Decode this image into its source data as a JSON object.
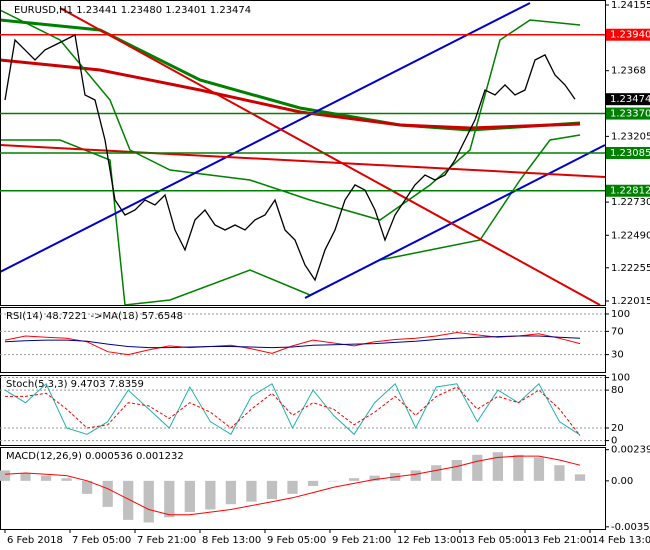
{
  "chart_data": [
    {
      "type": "line",
      "title": "EURUSD,H1  1.23441 1.23480 1.23401 1.23474",
      "xlim": [
        -0.5,
        60
      ],
      "ylim": [
        1.21986,
        1.24191
      ],
      "xticks": [
        {
          "value": 0,
          "label": "6 Feb 2018"
        },
        {
          "value": 6.5,
          "label": "7 Feb 05:00"
        },
        {
          "value": 13,
          "label": "7 Feb 21:00"
        },
        {
          "value": 19.5,
          "label": "8 Feb 13:00"
        },
        {
          "value": 26,
          "label": "9 Feb 05:00"
        },
        {
          "value": 32.5,
          "label": "9 Feb 21:00"
        },
        {
          "value": 39,
          "label": "12 Feb 13:00"
        },
        {
          "value": 45.5,
          "label": "13 Feb 05:00"
        },
        {
          "value": 52,
          "label": "13 Feb 21:00"
        },
        {
          "value": 58.5,
          "label": "14 Feb 13:00"
        }
      ],
      "yticks": [
        1.24155,
        1.2368,
        1.23205,
        {
          "value": 1.2273,
          "label": "1.22730"
        },
        {
          "value": 1.2249,
          "label": "1.22490"
        },
        1.22255,
        1.22015
      ],
      "levels": [
        {
          "value": 1.2394,
          "label": "1.23940",
          "color": "#ff0000"
        },
        {
          "value": 1.2337,
          "label": "1.23370",
          "color": "#008000"
        },
        {
          "value": 1.23085,
          "label": "1.23085",
          "color": "#008000"
        },
        {
          "value": 1.22812,
          "label": "1.22812",
          "color": "#008000"
        }
      ],
      "current_price": 1.23474,
      "series": [
        {
          "color": "#000000",
          "values": [
            1.23468,
            1.23902,
            1.2383,
            1.23757,
            1.2383,
            1.23866,
            1.23902,
            1.23938,
            1.23504,
            1.23468,
            1.23179,
            1.22745,
            1.22637,
            1.22673,
            1.22745,
            1.22709,
            1.22781,
            1.22528,
            1.22384,
            1.22601,
            1.22673,
            1.22564,
            1.22528,
            1.22564,
            1.22528,
            1.22601,
            1.22637,
            1.22745,
            1.22528,
            1.22456,
            1.22275,
            1.22167,
            1.22384,
            1.22528,
            1.22745,
            1.22854,
            1.22817,
            1.22673,
            1.22456,
            1.22637,
            1.22745,
            1.22854,
            1.22926,
            1.2289,
            1.22926,
            1.23034,
            1.23179,
            1.23324,
            1.2354,
            1.23504,
            1.23577,
            1.23504,
            1.2354,
            1.23757,
            1.23794,
            1.23649,
            1.23577,
            1.23474
          ]
        }
      ]
    },
    {
      "type": "line",
      "title": "RSI(14) 48.7221  ->MA(18) 57.6548",
      "ylim": [
        0,
        112
      ],
      "yticks": [
        100,
        70,
        30
      ],
      "grid": true,
      "series": [
        {
          "color": "#ff0000",
          "values": [
            55,
            62,
            60,
            58,
            52,
            35,
            30,
            38,
            45,
            42,
            44,
            46,
            40,
            32,
            45,
            55,
            50,
            45,
            52,
            56,
            58,
            62,
            68,
            64,
            60,
            62,
            66,
            58,
            49
          ]
        },
        {
          "color": "#00008b",
          "values": [
            52,
            54,
            55,
            55,
            53,
            48,
            44,
            42,
            42,
            43,
            44,
            44,
            43,
            42,
            43,
            46,
            47,
            48,
            49,
            51,
            53,
            56,
            58,
            60,
            61,
            62,
            62,
            60,
            58
          ]
        }
      ]
    },
    {
      "type": "line",
      "title": "Stoch(5,3,3) 9.4703 7.8359",
      "ylim": [
        -7,
        104
      ],
      "yticks": [
        100,
        80,
        20,
        0
      ],
      "grid": true,
      "series": [
        {
          "color": "#20b2aa",
          "values": [
            80,
            60,
            90,
            20,
            10,
            30,
            80,
            50,
            20,
            85,
            30,
            10,
            70,
            90,
            20,
            80,
            40,
            10,
            60,
            90,
            20,
            85,
            90,
            30,
            80,
            60,
            90,
            30,
            9
          ]
        },
        {
          "color": "#ff0000",
          "dashed": true,
          "values": [
            70,
            70,
            75,
            50,
            20,
            25,
            60,
            55,
            35,
            60,
            45,
            20,
            50,
            75,
            40,
            60,
            50,
            25,
            45,
            70,
            40,
            70,
            85,
            50,
            70,
            60,
            80,
            50,
            8
          ]
        }
      ]
    },
    {
      "type": "line",
      "title": "MACD(12,26,9) 0.000536 0.001232",
      "ylim": [
        -0.0037,
        0.0026
      ],
      "yticks": [
        0.002396,
        {
          "value": 0,
          "label": "0.00"
        },
        -0.003533
      ],
      "series": [
        {
          "color": "#c0c0c0",
          "style": "histogram",
          "values": [
            0.0008,
            0.0006,
            0.0004,
            0.0002,
            -0.001,
            -0.002,
            -0.003,
            -0.0032,
            -0.0028,
            -0.0024,
            -0.0022,
            -0.0018,
            -0.0016,
            -0.0014,
            -0.001,
            -0.0004,
            0,
            0.0002,
            0.0004,
            0.0006,
            0.0008,
            0.0012,
            0.0016,
            0.002,
            0.0022,
            0.002,
            0.0018,
            0.0012,
            0.0005
          ]
        },
        {
          "color": "#ff0000",
          "values": [
            0.0005,
            0.0006,
            0.0005,
            0.0004,
            0,
            -0.0006,
            -0.0014,
            -0.0022,
            -0.0026,
            -0.0026,
            -0.0024,
            -0.0022,
            -0.0019,
            -0.0016,
            -0.0013,
            -0.0009,
            -0.0005,
            -0.0002,
            0.0001,
            0.0003,
            0.0005,
            0.0008,
            0.0011,
            0.0015,
            0.0018,
            0.0019,
            0.0019,
            0.0016,
            0.0012
          ]
        }
      ]
    }
  ]
}
